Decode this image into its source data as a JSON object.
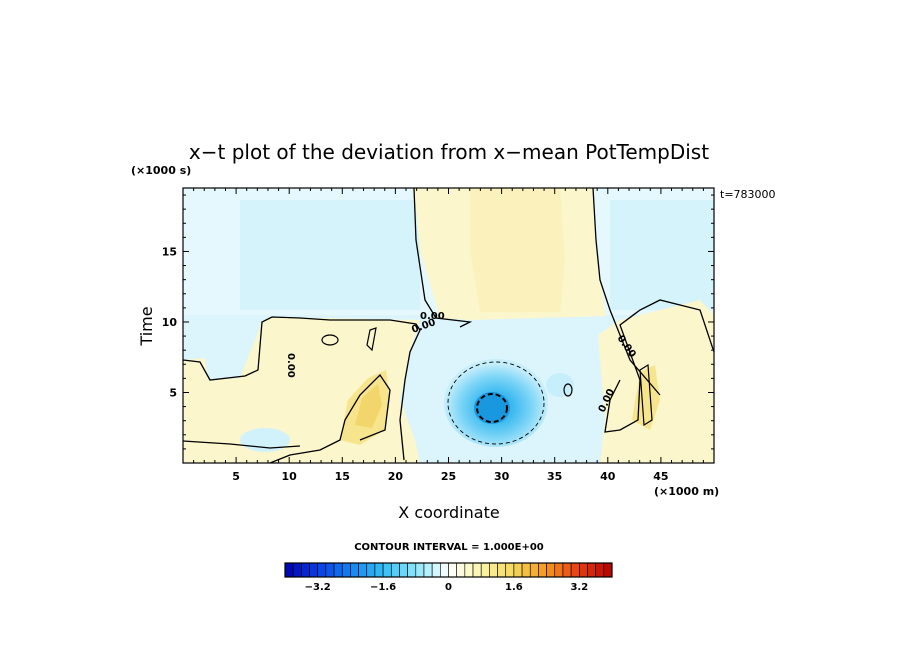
{
  "chart_data": {
    "type": "heatmap",
    "title": "x−t plot of the deviation from x−mean PotTempDist",
    "xlabel": "X coordinate",
    "ylabel": "Time",
    "x_unit": "(×1000 m)",
    "y_unit": "(×1000 s)",
    "time_note": "t=783000",
    "xlim": [
      0,
      50
    ],
    "ylim": [
      0,
      19.5
    ],
    "x_ticks": [
      5,
      10,
      15,
      20,
      25,
      30,
      35,
      40,
      45
    ],
    "y_ticks": [
      5,
      10,
      15
    ],
    "contour_interval_text": "CONTOUR INTERVAL = 1.000E+00",
    "contour_labels": [
      "0.00",
      "0.00",
      "0.00",
      "0.00",
      "0.00"
    ],
    "colorbar": {
      "min": -4.0,
      "max": 4.0,
      "step": 0.2,
      "tick_values": [
        -3.2,
        -1.6,
        0,
        1.6,
        3.2
      ],
      "tick_labels": [
        "−3.2",
        "−1.6",
        "0",
        "1.6",
        "3.2"
      ]
    },
    "features": [
      {
        "name": "cold anomaly",
        "x": 29.5,
        "y": 4.3,
        "min_value": -2.6
      },
      {
        "name": "warm column",
        "x_range": [
          22,
          38
        ],
        "y_range": [
          10.8,
          19.5
        ],
        "value": 0.5
      },
      {
        "name": "warm patch",
        "x": 17.5,
        "y": 5,
        "value": 1.2
      },
      {
        "name": "warm patch",
        "x": 44,
        "y": 6,
        "value": 1.0
      }
    ]
  }
}
